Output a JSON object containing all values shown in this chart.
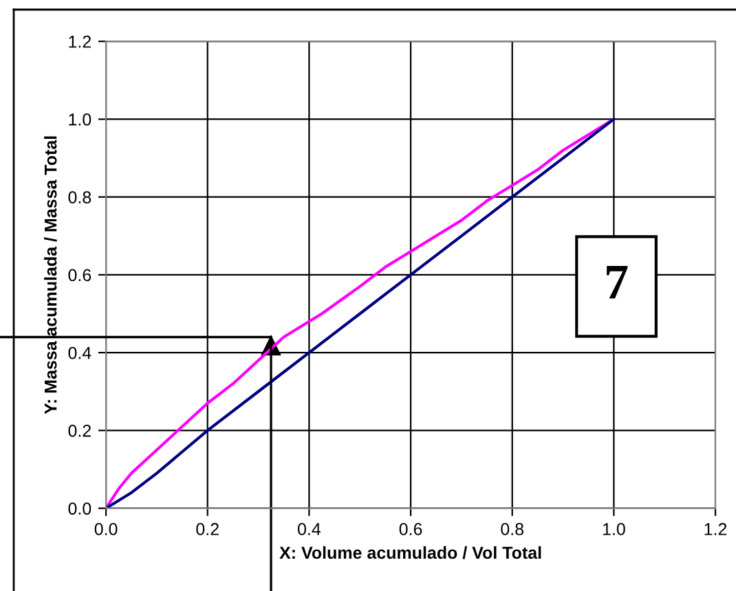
{
  "chart_data": {
    "type": "line",
    "xlabel": "X: Volume acumulado / Vol Total",
    "ylabel": "Y: Massa acumulada / Massa Total",
    "annotations": [
      "7"
    ],
    "series": [
      {
        "color": "#ff00ff",
        "x": [
          0,
          0.025,
          0.05,
          0.1,
          0.15,
          0.2,
          0.25,
          0.3,
          0.35,
          0.4,
          0.425,
          0.5,
          0.55,
          0.6,
          0.65,
          0.7,
          0.75,
          0.8,
          0.85,
          0.9,
          0.95,
          1.0
        ],
        "values": [
          0,
          0.05,
          0.09,
          0.15,
          0.21,
          0.27,
          0.32,
          0.38,
          0.44,
          0.48,
          0.5,
          0.57,
          0.62,
          0.66,
          0.7,
          0.74,
          0.79,
          0.83,
          0.87,
          0.92,
          0.96,
          1.0
        ]
      },
      {
        "color": "#000080",
        "x": [
          0,
          0.05,
          0.1,
          0.2,
          0.3,
          0.4,
          0.5,
          0.6,
          0.7,
          0.8,
          0.9,
          1.0
        ],
        "values": [
          0,
          0.04,
          0.09,
          0.2,
          0.3,
          0.4,
          0.5,
          0.6,
          0.7,
          0.8,
          0.9,
          1.0
        ]
      }
    ],
    "xlim": [
      0,
      1.2
    ],
    "ylim": [
      0,
      1.2
    ],
    "xticks": [
      {
        "value": 0,
        "label": "0.0"
      },
      0.2,
      0.4,
      0.6,
      0.8,
      {
        "value": 1.0,
        "label": "1.0"
      },
      1.2
    ],
    "yticks": [
      {
        "value": 0,
        "label": "0.0"
      },
      0.2,
      0.4,
      0.6,
      0.8,
      {
        "value": 1.0,
        "label": "1.0"
      },
      1.2
    ],
    "grid": true,
    "legend": false
  }
}
